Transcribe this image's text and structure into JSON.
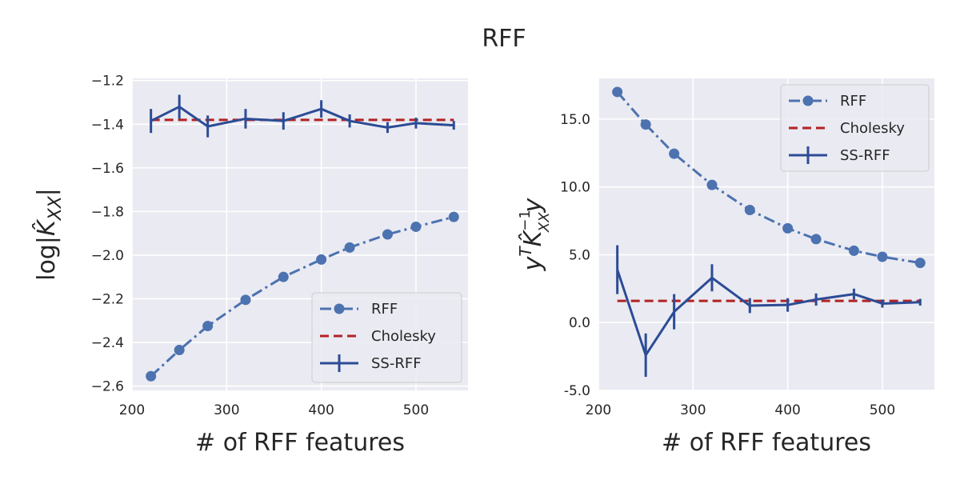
{
  "figure": {
    "title": "RFF"
  },
  "chart_data": [
    {
      "type": "line",
      "xlabel": "# of RFF features",
      "ylabel": "log|K̂_XX|",
      "xlim": [
        200,
        555
      ],
      "ylim": [
        -2.62,
        -1.19
      ],
      "xticks": [
        200,
        300,
        400,
        500
      ],
      "yticks": [
        -2.6,
        -2.4,
        -2.2,
        -2.0,
        -1.8,
        -1.6,
        -1.4,
        -1.2
      ],
      "ytick_labels": [
        "−2.6",
        "−2.4",
        "−2.2",
        "−2.0",
        "−1.8",
        "−1.6",
        "−1.4",
        "−1.2"
      ],
      "legend_position": "lower-right",
      "series": [
        {
          "name": "RFF",
          "style": "dashdot-marker",
          "color": "#4c72b0",
          "x": [
            220,
            250,
            280,
            320,
            360,
            400,
            430,
            470,
            500,
            540
          ],
          "y": [
            -2.555,
            -2.435,
            -2.325,
            -2.205,
            -2.1,
            -2.02,
            -1.965,
            -1.905,
            -1.87,
            -1.825
          ]
        },
        {
          "name": "Cholesky",
          "style": "dashed",
          "color": "#b22222",
          "x": [
            220,
            540
          ],
          "y": [
            -1.38,
            -1.38
          ]
        },
        {
          "name": "SS-RFF",
          "style": "errorbar",
          "color": "#2c4c95",
          "x": [
            220,
            250,
            280,
            320,
            360,
            400,
            430,
            470,
            500,
            540
          ],
          "y": [
            -1.385,
            -1.32,
            -1.41,
            -1.375,
            -1.385,
            -1.33,
            -1.385,
            -1.415,
            -1.395,
            -1.405
          ],
          "err": [
            0.055,
            0.055,
            0.05,
            0.045,
            0.04,
            0.04,
            0.03,
            0.025,
            0.025,
            0.02
          ]
        }
      ]
    },
    {
      "type": "line",
      "xlabel": "# of RFF features",
      "ylabel": "y^T K̂_XX^{-1} y",
      "xlim": [
        200,
        555
      ],
      "ylim": [
        -5.0,
        18.0
      ],
      "xticks": [
        200,
        300,
        400,
        500
      ],
      "yticks": [
        -5.0,
        0.0,
        5.0,
        10.0,
        15.0
      ],
      "ytick_labels": [
        "-5.0",
        "0.0",
        "5.0",
        "10.0",
        "15.0"
      ],
      "legend_position": "upper-right",
      "series": [
        {
          "name": "RFF",
          "style": "dashdot-marker",
          "color": "#4c72b0",
          "x": [
            220,
            250,
            280,
            320,
            360,
            400,
            430,
            470,
            500,
            540
          ],
          "y": [
            17.0,
            14.6,
            12.45,
            10.15,
            8.3,
            6.95,
            6.15,
            5.3,
            4.85,
            4.4
          ]
        },
        {
          "name": "Cholesky",
          "style": "dashed",
          "color": "#b22222",
          "x": [
            220,
            540
          ],
          "y": [
            1.6,
            1.6
          ]
        },
        {
          "name": "SS-RFF",
          "style": "errorbar",
          "color": "#2c4c95",
          "x": [
            220,
            250,
            280,
            320,
            360,
            400,
            430,
            470,
            500,
            540
          ],
          "y": [
            3.9,
            -2.4,
            0.8,
            3.3,
            1.25,
            1.3,
            1.7,
            2.1,
            1.4,
            1.5
          ],
          "err": [
            1.8,
            1.6,
            1.3,
            1.0,
            0.55,
            0.5,
            0.45,
            0.4,
            0.3,
            0.25
          ]
        }
      ]
    }
  ]
}
